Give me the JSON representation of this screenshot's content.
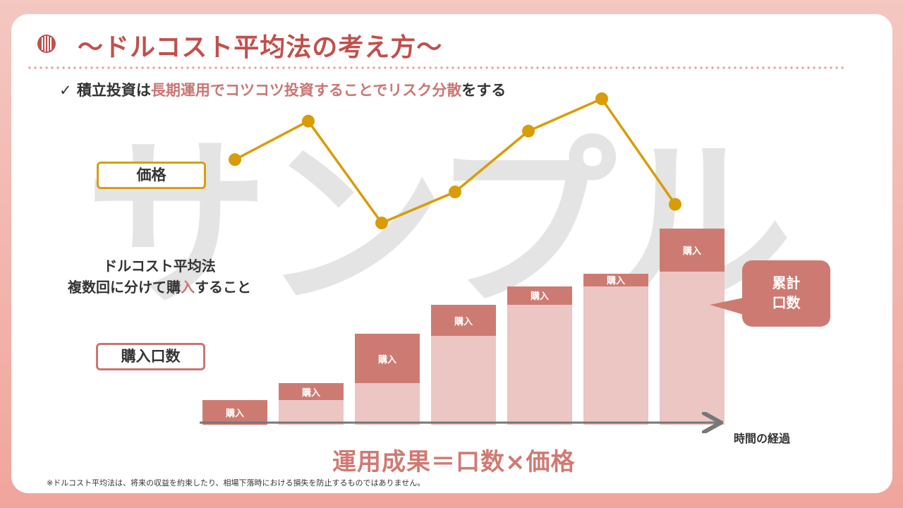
{
  "header": {
    "title": "～ドルコスト平均法の考え方～",
    "subtitle_check": "✓",
    "subtitle_part1": "積立投資は",
    "subtitle_highlight1": "長期運用でコツコツ投資することでリスク分散",
    "subtitle_part2": "をする"
  },
  "watermark": "サンプル",
  "labels": {
    "price": "価格",
    "units": "購入口数"
  },
  "description": {
    "line1": "ドルコスト平均法",
    "line2_pre": "複数回に分けて購",
    "line2_hl": "入",
    "line2_post": "すること"
  },
  "chart_data": [
    {
      "type": "line",
      "series": [
        {
          "name": "価格",
          "values": [
            0.51,
            0.82,
            0.0,
            0.25,
            0.74,
            1.0,
            0.15
          ]
        }
      ],
      "colors": {
        "line": "#d99c07"
      }
    },
    {
      "type": "bar",
      "stacked": true,
      "bar_label": "購入",
      "series": [
        {
          "name": "base",
          "values": [
            0,
            0.12,
            0.2,
            0.43,
            0.58,
            0.67,
            0.74
          ]
        },
        {
          "name": "購入",
          "values": [
            0.12,
            0.08,
            0.24,
            0.15,
            0.09,
            0.06,
            0.21
          ]
        }
      ],
      "colors": {
        "base": "#ebc6c3",
        "buy": "#cd7b72"
      }
    }
  ],
  "axis_label": "時間の経過",
  "callout": {
    "line1": "累計",
    "line2": "口数"
  },
  "formula": "運用成果＝口数×価格",
  "footnote": "※ドルコスト平均法は、将来の収益を約束したり、相場下落時における損失を防止するものではありません。",
  "colors": {
    "title": "#c0504d",
    "accent": "#c97672",
    "price_line": "#d99c07",
    "bar_buy": "#cd7b72",
    "bar_base": "#ebc6c3"
  }
}
